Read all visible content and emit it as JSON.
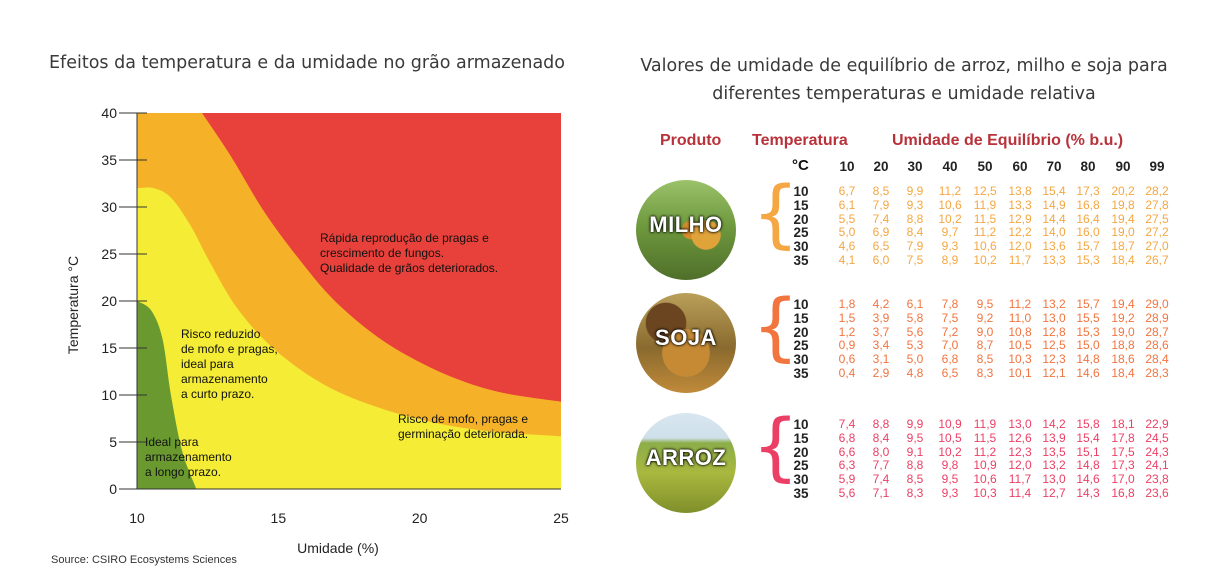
{
  "chart_data": [
    {
      "type": "area",
      "title": "Efeitos da temperatura e da umidade no grão armazenado",
      "xlabel": "Umidade (%)",
      "ylabel": "Temperatura °C",
      "xlim": [
        10,
        25
      ],
      "ylim": [
        0,
        40
      ],
      "xticks": [
        "10",
        "15",
        "20",
        "25"
      ],
      "yticks": [
        "0",
        "5",
        "10",
        "15",
        "20",
        "25",
        "30",
        "35",
        "40"
      ],
      "grid": false,
      "regions": [
        {
          "name": "Ideal para armazenamento a longo prazo.",
          "color": "#6a9a2f"
        },
        {
          "name": "Risco reduzido de mofo e pragas, ideal para armazenamento a curto prazo.",
          "color": "#f4ec35"
        },
        {
          "name": "Risco de mofo, pragas e germinação deteriorada.",
          "color": "#f5b229"
        },
        {
          "name": "Rápida reprodução de pragas e crescimento de fungos. Qualidade de grãos deteriorados.",
          "color": "#e8403a"
        }
      ],
      "boundaries": {
        "green_yellow": [
          [
            10,
            20
          ],
          [
            10.5,
            19
          ],
          [
            10.9,
            16
          ],
          [
            11.2,
            10
          ],
          [
            11.6,
            4
          ],
          [
            12.1,
            0
          ]
        ],
        "yellow_orange": [
          [
            10,
            32
          ],
          [
            10.6,
            32
          ],
          [
            11.2,
            31
          ],
          [
            11.9,
            28
          ],
          [
            12.6,
            24
          ],
          [
            13.6,
            19
          ],
          [
            15,
            14.5
          ],
          [
            17,
            10.5
          ],
          [
            19.5,
            7.8
          ],
          [
            22,
            6.3
          ],
          [
            25,
            5.6
          ]
        ],
        "orange_red": [
          [
            12.3,
            40
          ],
          [
            13.3,
            35.5
          ],
          [
            14.5,
            29.5
          ],
          [
            15.8,
            24.2
          ],
          [
            17,
            20
          ],
          [
            18.5,
            16.2
          ],
          [
            20,
            13.5
          ],
          [
            21.5,
            11.5
          ],
          [
            23,
            10.2
          ],
          [
            25,
            9.3
          ]
        ]
      },
      "annotations": [
        {
          "lines": [
            "Rápida reprodução de pragas e",
            "crescimento de fungos.",
            "Qualidade de grãos deteriorados."
          ]
        },
        {
          "lines": [
            "Risco reduzido",
            "de mofo e pragas,",
            "ideal para",
            "armazenamento",
            "a curto prazo."
          ]
        },
        {
          "lines": [
            "Risco de mofo, pragas e",
            "germinação deteriorada."
          ]
        },
        {
          "lines": [
            "Ideal para",
            "armazenamento",
            "a longo prazo."
          ]
        }
      ],
      "source": "Source: CSIRO Ecosystems Sciences"
    },
    {
      "type": "table",
      "title": "Valores de umidade de equilíbrio de arroz, milho e soja para diferentes temperaturas e umidade relativa",
      "headers": {
        "product": "Produto",
        "temperature": "Temperatura",
        "unit": "°C",
        "humidity": "Umidade de Equilíbrio (% b.u.)"
      },
      "humidity_columns": [
        "10",
        "20",
        "30",
        "40",
        "50",
        "60",
        "70",
        "80",
        "90",
        "99"
      ],
      "temperatures": [
        "10",
        "15",
        "20",
        "25",
        "30",
        "35"
      ],
      "products": [
        {
          "name": "MILHO",
          "color": "#f4a742",
          "rows": [
            [
              "6,7",
              "8,5",
              "9,9",
              "11,2",
              "12,5",
              "13,8",
              "15,4",
              "17,3",
              "20,2",
              "28,2"
            ],
            [
              "6,1",
              "7,9",
              "9,3",
              "10,6",
              "11,9",
              "13,3",
              "14,9",
              "16,8",
              "19,8",
              "27,8"
            ],
            [
              "5,5",
              "7,4",
              "8,8",
              "10,2",
              "11,5",
              "12,9",
              "14,4",
              "16,4",
              "19,4",
              "27,5"
            ],
            [
              "5,0",
              "6,9",
              "8,4",
              "9,7",
              "11,2",
              "12,2",
              "14,0",
              "16,0",
              "19,0",
              "27,2"
            ],
            [
              "4,6",
              "6,5",
              "7,9",
              "9,3",
              "10,6",
              "12,0",
              "13,6",
              "15,7",
              "18,7",
              "27,0"
            ],
            [
              "4,1",
              "6,0",
              "7,5",
              "8,9",
              "10,2",
              "11,7",
              "13,3",
              "15,3",
              "18,4",
              "26,7"
            ]
          ]
        },
        {
          "name": "SOJA",
          "color": "#f2743f",
          "rows": [
            [
              "1,8",
              "4,2",
              "6,1",
              "7,8",
              "9,5",
              "11,2",
              "13,2",
              "15,7",
              "19,4",
              "29,0"
            ],
            [
              "1,5",
              "3,9",
              "5,8",
              "7,5",
              "9,2",
              "11,0",
              "13,0",
              "15,5",
              "19,2",
              "28,9"
            ],
            [
              "1,2",
              "3,7",
              "5,6",
              "7,2",
              "9,0",
              "10,8",
              "12,8",
              "15,3",
              "19,0",
              "28,7"
            ],
            [
              "0,9",
              "3,4",
              "5,3",
              "7,0",
              "8,7",
              "10,5",
              "12,5",
              "15,0",
              "18,8",
              "28,6"
            ],
            [
              "0,6",
              "3,1",
              "5,0",
              "6,8",
              "8,5",
              "10,3",
              "12,3",
              "14,8",
              "18,6",
              "28,4"
            ],
            [
              "0,4",
              "2,9",
              "4,8",
              "6,5",
              "8,3",
              "10,1",
              "12,1",
              "14,6",
              "18,4",
              "28,3"
            ]
          ]
        },
        {
          "name": "ARROZ",
          "color": "#ec3f65",
          "rows": [
            [
              "7,4",
              "8,8",
              "9,9",
              "10,9",
              "11,9",
              "13,0",
              "14,2",
              "15,8",
              "18,1",
              "22,9"
            ],
            [
              "6,8",
              "8,4",
              "9,5",
              "10,5",
              "11,5",
              "12,6",
              "13,9",
              "15,4",
              "17,8",
              "24,5"
            ],
            [
              "6,6",
              "8,0",
              "9,1",
              "10,2",
              "11,2",
              "12,3",
              "13,5",
              "15,1",
              "17,5",
              "24,3"
            ],
            [
              "6,3",
              "7,7",
              "8,8",
              "9,8",
              "10,9",
              "12,0",
              "13,2",
              "14,8",
              "17,3",
              "24,1"
            ],
            [
              "5,9",
              "7,4",
              "8,5",
              "9,5",
              "10,6",
              "11,7",
              "13,0",
              "14,6",
              "17,0",
              "23,8"
            ],
            [
              "5,6",
              "7,1",
              "8,3",
              "9,3",
              "10,3",
              "11,4",
              "12,7",
              "14,3",
              "16,8",
              "23,6"
            ]
          ]
        }
      ]
    }
  ]
}
